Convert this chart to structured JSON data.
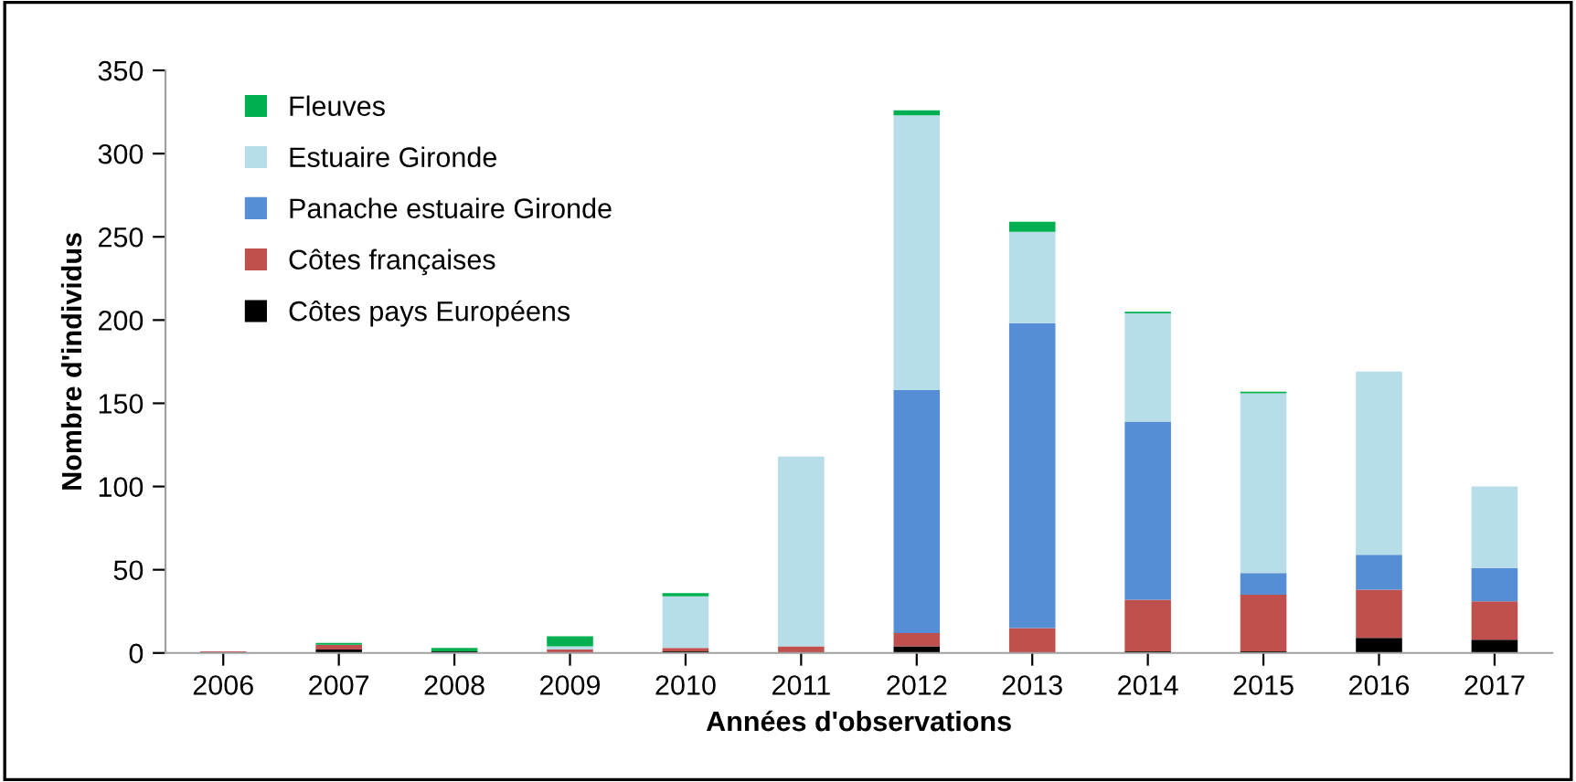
{
  "chart_data": {
    "type": "bar",
    "stacked": true,
    "xlabel": "Années d'observations",
    "ylabel": "Nombre d'individus",
    "categories": [
      "2006",
      "2007",
      "2008",
      "2009",
      "2010",
      "2011",
      "2012",
      "2013",
      "2014",
      "2015",
      "2016",
      "2017"
    ],
    "series": [
      {
        "name": "Côtes pays Européens",
        "color": "#000000",
        "values": [
          0,
          2,
          1,
          0,
          1,
          0,
          4,
          0,
          1,
          1,
          9,
          8
        ]
      },
      {
        "name": "Côtes françaises",
        "color": "#c0504d",
        "values": [
          1,
          3,
          0,
          2,
          2,
          4,
          8,
          15,
          31,
          34,
          29,
          23
        ]
      },
      {
        "name": "Panache estuaire Gironde",
        "color": "#558ed5",
        "values": [
          0,
          0,
          0,
          0,
          0,
          0,
          146,
          183,
          107,
          13,
          21,
          20
        ]
      },
      {
        "name": "Estuaire Gironde",
        "color": "#b7dde8",
        "values": [
          0,
          0,
          0,
          2,
          31,
          114,
          165,
          55,
          65,
          108,
          110,
          49
        ]
      },
      {
        "name": "Fleuves",
        "color": "#00b050",
        "values": [
          0,
          1,
          2,
          6,
          2,
          0,
          3,
          6,
          1,
          1,
          0,
          0
        ]
      }
    ],
    "ylim": [
      0,
      350
    ],
    "yticks": [
      0,
      50,
      100,
      150,
      200,
      250,
      300,
      350
    ],
    "grid": false,
    "legend": "top left"
  }
}
